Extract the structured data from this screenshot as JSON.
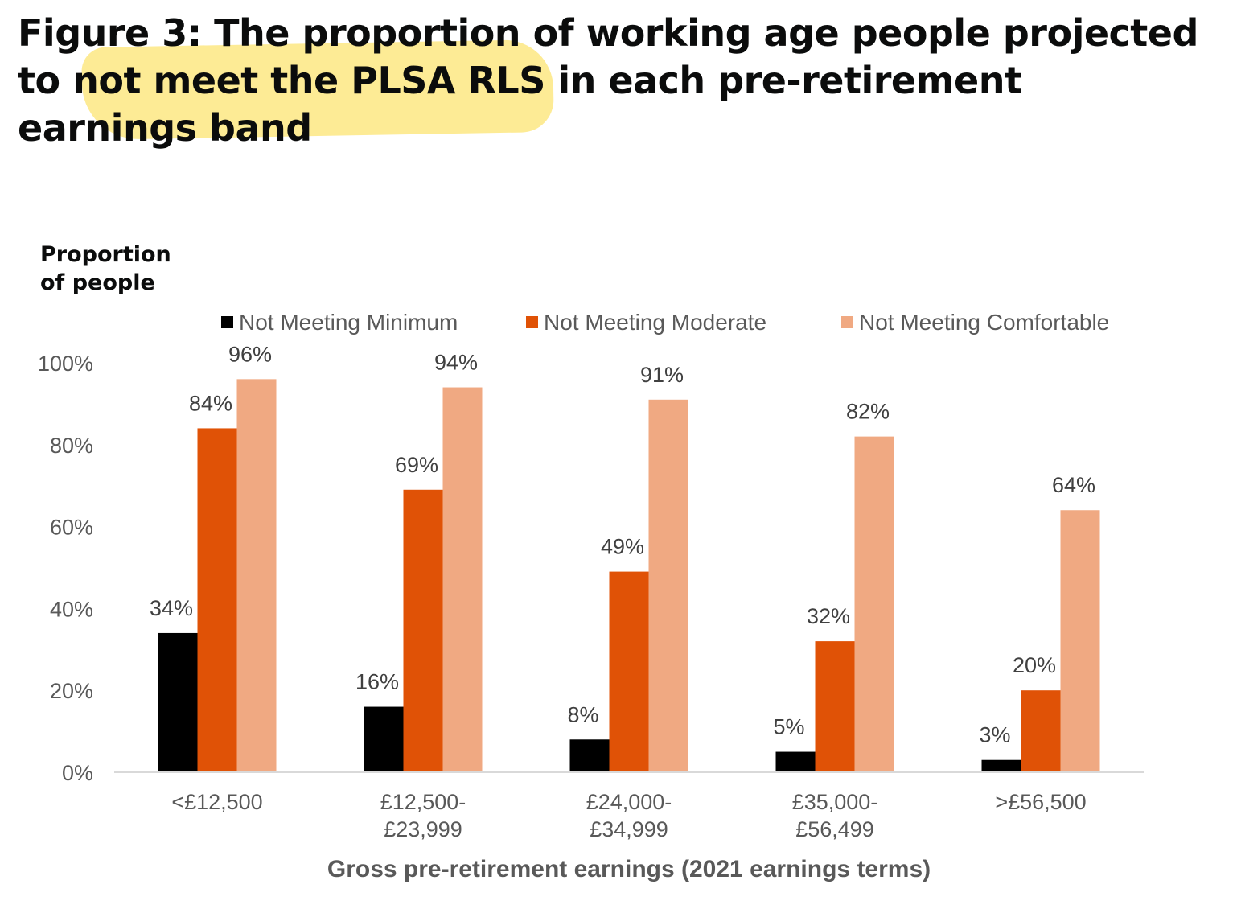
{
  "header": {
    "title": "Figure 3: The proportion of working age people projected to not meet the PLSA RLS in each pre-retirement earnings band"
  },
  "chart_data": {
    "type": "bar",
    "ylabel_lines": [
      "Proportion",
      "of people"
    ],
    "xlabel": "Gross pre-retirement earnings (2021 earnings terms)",
    "ylim": [
      0,
      100
    ],
    "y_ticks": [
      "0%",
      "20%",
      "40%",
      "60%",
      "80%",
      "100%"
    ],
    "grid": false,
    "legend_position": "top",
    "categories": [
      [
        "<£12,500"
      ],
      [
        "£12,500-",
        "£23,999"
      ],
      [
        "£24,000-",
        "£34,999"
      ],
      [
        "£35,000-",
        "£56,499"
      ],
      [
        ">£56,500"
      ]
    ],
    "series": [
      {
        "name": "Not Meeting Minimum",
        "color": "#000000",
        "values": [
          34,
          16,
          8,
          5,
          3
        ]
      },
      {
        "name": "Not Meeting Moderate",
        "color": "#e05206",
        "values": [
          84,
          69,
          49,
          32,
          20
        ]
      },
      {
        "name": "Not Meeting Comfortable",
        "color": "#f0a982",
        "values": [
          96,
          94,
          91,
          82,
          64
        ]
      }
    ]
  }
}
